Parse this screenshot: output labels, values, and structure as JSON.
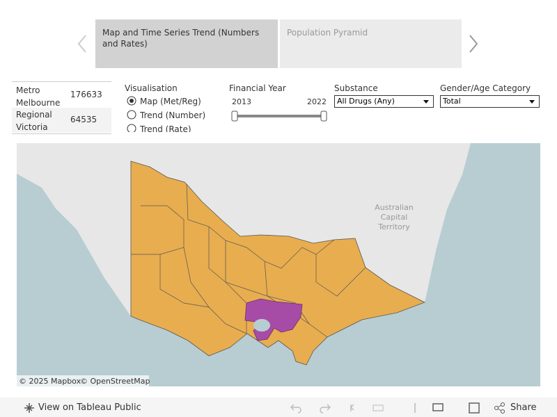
{
  "tabs": [
    "Map and Time Series Trend (Numbers and Rates)",
    "Population Pyramid"
  ],
  "summary": {
    "rows": [
      {
        "label": "Metro Melbourne",
        "value": 176633
      },
      {
        "label": "Regional Victoria",
        "value": 64535
      }
    ]
  },
  "filters": {
    "visualisation": {
      "title": "Visualisation",
      "options": [
        "Map (Met/Reg)",
        "Trend (Number)",
        "Trend (Rate)"
      ],
      "selected": 0
    },
    "financial_year": {
      "title": "Financial Year",
      "min": 2013,
      "max": 2022
    },
    "substance": {
      "title": "Substance",
      "value": "All Drugs (Any)"
    },
    "gender_age": {
      "title": "Gender/Age Category",
      "value": "Total"
    }
  },
  "map": {
    "labels": [
      "Australian",
      "Capital",
      "Territory"
    ],
    "attribution": [
      "© 2025 Mapbox",
      "© OpenStreetMap"
    ]
  },
  "toolbar": {
    "view": "View on Tableau Public",
    "share": "Share"
  }
}
